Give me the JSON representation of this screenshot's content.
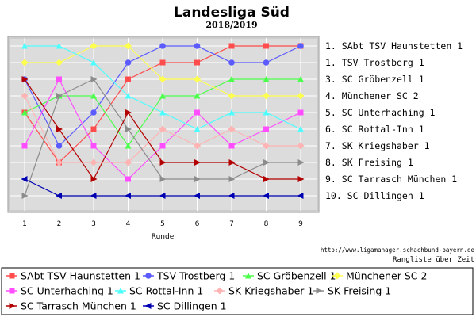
{
  "chart_data": {
    "type": "line",
    "title": "Landesliga Süd",
    "subtitle": "2018/2019",
    "xlabel": "Runde",
    "categories": [
      1,
      2,
      3,
      4,
      5,
      6,
      7,
      8,
      9
    ],
    "ylim": [
      1,
      10
    ],
    "y_reversed": true,
    "grid": true,
    "legend_position": "bottom",
    "source_url": "http://www.ligamanager.schachbund-bayern.de",
    "caption": "Rangliste über Zeit",
    "final_ranking": [
      "1. SAbt TSV Haunstetten 1",
      "1. TSV Trostberg 1",
      "3. SC Gröbenzell 1",
      "4. Münchener SC 2",
      "5. SC Unterhaching 1",
      "6. SC Rottal-Inn 1",
      "7. SK Kriegshaber 1",
      "8. SK Freising 1",
      "9. SC Tarrasch München 1",
      "10. SC Dillingen 1"
    ],
    "series": [
      {
        "name": "SAbt TSV Haunstetten 1",
        "color": "#ff4d4d",
        "marker": "square",
        "values": [
          5,
          8,
          6,
          3,
          2,
          2,
          1,
          1,
          1
        ]
      },
      {
        "name": "TSV Trostberg 1",
        "color": "#5b5bff",
        "marker": "circle",
        "values": [
          3,
          7,
          5,
          2,
          1,
          1,
          2,
          2,
          1
        ]
      },
      {
        "name": "SC Gröbenzell 1",
        "color": "#4dff4d",
        "marker": "triangle",
        "values": [
          5,
          4,
          4,
          7,
          4,
          4,
          3,
          3,
          3
        ]
      },
      {
        "name": "Münchener SC 2",
        "color": "#ffff4d",
        "marker": "diamond",
        "values": [
          2,
          2,
          1,
          1,
          3,
          3,
          4,
          4,
          4
        ]
      },
      {
        "name": "SC Unterhaching 1",
        "color": "#ff4dff",
        "marker": "square",
        "values": [
          7,
          3,
          7,
          9,
          7,
          5,
          7,
          6,
          5
        ]
      },
      {
        "name": "SC Rottal-Inn 1",
        "color": "#4dffff",
        "marker": "triangle",
        "values": [
          1,
          1,
          2,
          4,
          5,
          6,
          5,
          5,
          6
        ]
      },
      {
        "name": "SK Kriegshaber 1",
        "color": "#ffb3b3",
        "marker": "diamond",
        "values": [
          4,
          8,
          8,
          8,
          6,
          7,
          6,
          7,
          7
        ]
      },
      {
        "name": "SK Freising 1",
        "color": "#8c8c8c",
        "marker": "triangle-right",
        "values": [
          10,
          4,
          3,
          6,
          9,
          9,
          9,
          8,
          8
        ]
      },
      {
        "name": "SC Tarrasch München 1",
        "color": "#b30000",
        "marker": "triangle-right",
        "values": [
          3,
          6,
          9,
          5,
          8,
          8,
          8,
          9,
          9
        ]
      },
      {
        "name": "SC Dillingen 1",
        "color": "#0000b3",
        "marker": "triangle-left",
        "values": [
          9,
          10,
          10,
          10,
          10,
          10,
          10,
          10,
          10
        ]
      }
    ]
  }
}
